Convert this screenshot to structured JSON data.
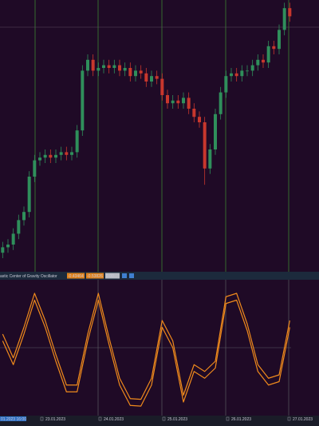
{
  "chart_data": [
    {
      "type": "candlestick",
      "x": [
        0,
        1,
        2,
        3,
        4,
        5,
        6,
        7,
        8,
        9,
        10,
        11,
        12,
        13,
        14,
        15,
        16,
        17,
        18,
        19,
        20,
        21,
        22,
        23,
        24,
        25,
        26,
        27,
        28,
        29,
        30,
        31,
        32,
        33,
        34,
        35,
        36,
        37,
        38,
        39,
        40,
        41,
        42,
        43,
        44,
        45,
        46,
        47,
        48,
        49,
        50,
        51,
        52,
        53,
        54
      ],
      "open": [
        7,
        9,
        10,
        14,
        19,
        22,
        35,
        41,
        42,
        43,
        42,
        43,
        44,
        43,
        44,
        52,
        74,
        78,
        74,
        75,
        76,
        75,
        76,
        74,
        75,
        72,
        74,
        73,
        70,
        72,
        71,
        65,
        62,
        63,
        62,
        64,
        60,
        57,
        55,
        38,
        45,
        58,
        66,
        72,
        73,
        72,
        74,
        74,
        76,
        78,
        77,
        83,
        82,
        89,
        97
      ],
      "high": [
        11,
        12,
        16,
        21,
        24,
        37,
        43,
        44,
        45,
        45,
        45,
        46,
        46,
        46,
        54,
        76,
        80,
        80,
        77,
        78,
        78,
        78,
        78,
        77,
        77,
        76,
        76,
        75,
        74,
        74,
        73,
        67,
        65,
        65,
        66,
        66,
        62,
        59,
        57,
        47,
        60,
        68,
        74,
        75,
        75,
        76,
        76,
        78,
        80,
        80,
        85,
        85,
        91,
        99,
        99
      ],
      "low": [
        5,
        7,
        8,
        12,
        17,
        20,
        33,
        39,
        40,
        40,
        40,
        41,
        41,
        41,
        42,
        50,
        72,
        72,
        72,
        73,
        73,
        73,
        72,
        72,
        70,
        70,
        71,
        68,
        68,
        69,
        63,
        60,
        60,
        60,
        60,
        58,
        55,
        53,
        32,
        36,
        43,
        56,
        64,
        70,
        70,
        70,
        72,
        72,
        74,
        75,
        75,
        80,
        80,
        87,
        92
      ],
      "close": [
        9,
        10,
        14,
        19,
        22,
        35,
        41,
        42,
        43,
        42,
        43,
        44,
        43,
        44,
        52,
        74,
        78,
        74,
        75,
        76,
        75,
        76,
        74,
        75,
        72,
        74,
        73,
        70,
        72,
        71,
        65,
        62,
        63,
        62,
        64,
        60,
        57,
        55,
        38,
        45,
        58,
        66,
        72,
        73,
        72,
        74,
        74,
        76,
        78,
        77,
        83,
        82,
        89,
        97,
        94
      ],
      "up_color": "#2f8f5b",
      "down_color": "#c8372d",
      "xlim": [
        -0.5,
        59.5
      ],
      "ylim": [
        0,
        100
      ],
      "hline": 90
    },
    {
      "type": "line",
      "title": "astic Center of Gravity Oscillator",
      "x": [
        0,
        2,
        4,
        6,
        8,
        10,
        12,
        14,
        16,
        18,
        20,
        22,
        24,
        26,
        28,
        30,
        32,
        34,
        36,
        38,
        40,
        42,
        44,
        46,
        48,
        50,
        52,
        54
      ],
      "series": [
        {
          "color": "#f08a1c",
          "values": [
            0.2,
            -0.15,
            0.3,
            0.8,
            0.4,
            -0.1,
            -0.55,
            -0.55,
            0.2,
            0.8,
            0.15,
            -0.45,
            -0.75,
            -0.76,
            -0.45,
            0.4,
            0.1,
            -0.7,
            -0.25,
            -0.35,
            -0.2,
            0.75,
            0.8,
            0.35,
            -0.25,
            -0.45,
            -0.4,
            0.4
          ]
        },
        {
          "color": "#f08a1c",
          "values": [
            0.1,
            -0.25,
            0.2,
            0.7,
            0.3,
            -0.2,
            -0.65,
            -0.65,
            0.1,
            0.7,
            0.05,
            -0.55,
            -0.85,
            -0.86,
            -0.55,
            0.3,
            0,
            -0.8,
            -0.35,
            -0.45,
            -0.3,
            0.65,
            0.7,
            0.25,
            -0.35,
            -0.55,
            -0.5,
            0.3
          ]
        }
      ],
      "value_labels": [
        "-0.43464",
        "-0.53826",
        "0.00..."
      ],
      "xlim": [
        -0.5,
        59.5
      ],
      "ylim": [
        -1,
        1
      ],
      "hline": 0
    }
  ],
  "time_axis": {
    "cursor": "01.2023 16:00",
    "labels": [
      "23.01.2023",
      "24.01.2023",
      "25.01.2023",
      "26.01.2023",
      "27.01.2023"
    ]
  }
}
